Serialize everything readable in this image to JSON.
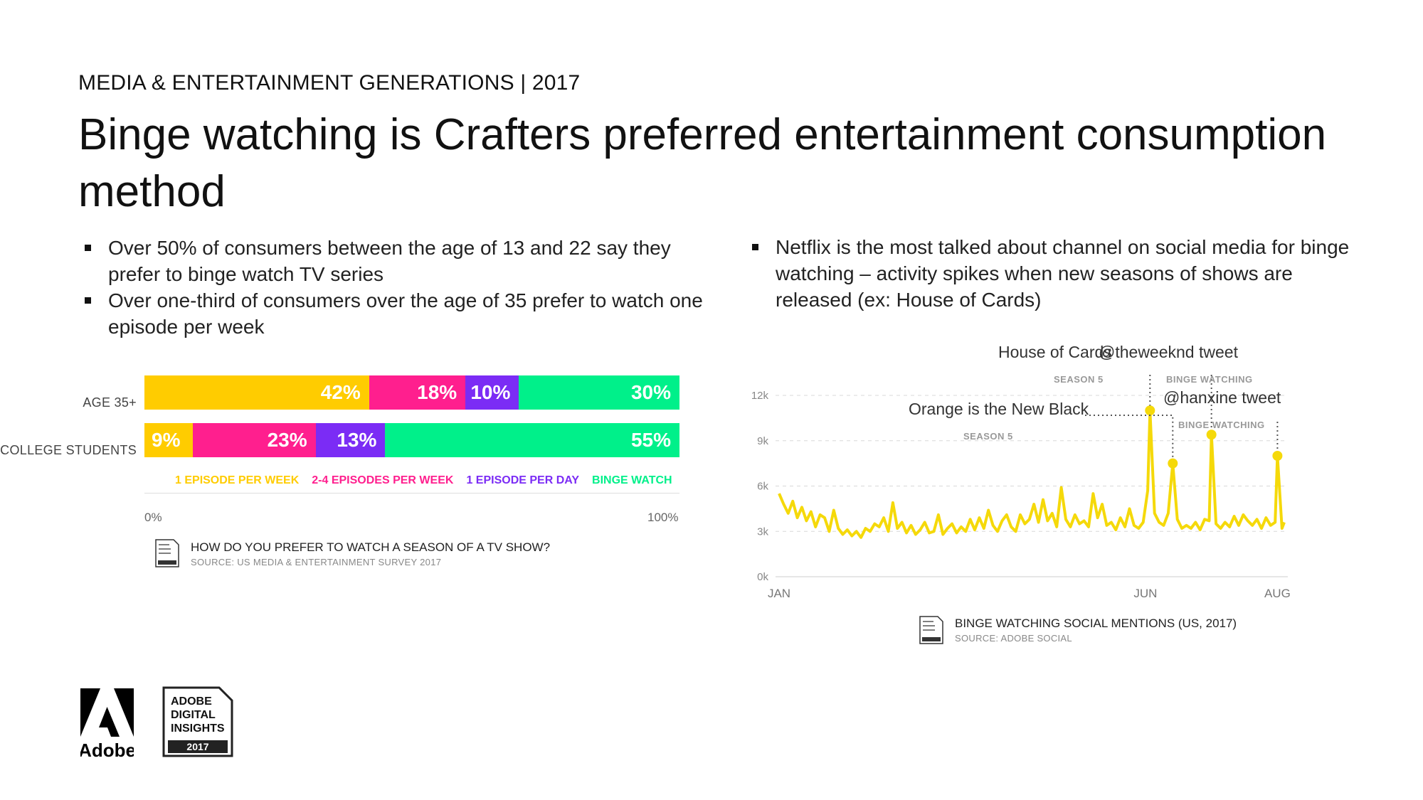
{
  "header": {
    "eyebrow": "MEDIA & ENTERTAINMENT GENERATIONS | 2017",
    "title": "Binge watching is Crafters preferred entertainment consumption method"
  },
  "bullets_left": [
    "Over 50% of consumers between the age of 13 and 22 say they prefer to binge watch TV series",
    "Over one-third of consumers over the age of 35 prefer to watch one episode per week"
  ],
  "bullets_right": [
    "Netflix is the most talked about channel on social media for binge watching – activity spikes when new seasons of shows are released (ex: House of Cards)"
  ],
  "colors": {
    "yellow": "#FFCC00",
    "pink": "#FF1F8E",
    "purple": "#7B2CF5",
    "green": "#00F08A",
    "line": "#F5D90A"
  },
  "chart_data": [
    {
      "type": "bar",
      "orientation": "horizontal-stacked-100",
      "categories": [
        "AGE 35+",
        "COLLEGE STUDENTS"
      ],
      "series": [
        {
          "name": "1 EPISODE PER WEEK",
          "values": [
            42,
            9
          ],
          "labels": [
            "42%",
            "9%"
          ]
        },
        {
          "name": "2-4 EPISODES PER WEEK",
          "values": [
            18,
            23
          ],
          "labels": [
            "18%",
            "23%"
          ]
        },
        {
          "name": "1 EPISODE PER DAY",
          "values": [
            10,
            13
          ],
          "labels": [
            "10%",
            "13%"
          ]
        },
        {
          "name": "BINGE WATCH",
          "values": [
            30,
            55
          ],
          "labels": [
            "30%",
            "55%"
          ]
        }
      ],
      "xlim": [
        0,
        100
      ],
      "x_tick_labels": [
        "0%",
        "100%"
      ],
      "title": "HOW DO YOU PREFER TO WATCH A SEASON OF A TV SHOW?",
      "source": "SOURCE: US MEDIA & ENTERTAINMENT SURVEY 2017"
    },
    {
      "type": "line",
      "title": "BINGE WATCHING SOCIAL MENTIONS (US, 2017)",
      "source": "SOURCE: ADOBE SOCIAL",
      "x_range_days": [
        0,
        222
      ],
      "x_ticks": [
        {
          "day": 0,
          "label": "JAN"
        },
        {
          "day": 161,
          "label": "JUN"
        },
        {
          "day": 219,
          "label": "AUG"
        }
      ],
      "ylim": [
        0,
        12000
      ],
      "y_ticks": [
        {
          "value": 0,
          "label": "0k"
        },
        {
          "value": 3000,
          "label": "3k"
        },
        {
          "value": 6000,
          "label": "6k"
        },
        {
          "value": 9000,
          "label": "9k"
        },
        {
          "value": 12000,
          "label": "12k"
        }
      ],
      "series": [
        {
          "name": "Social mentions",
          "points": [
            [
              0,
              5500
            ],
            [
              2,
              4800
            ],
            [
              4,
              4200
            ],
            [
              6,
              5000
            ],
            [
              8,
              3900
            ],
            [
              10,
              4600
            ],
            [
              12,
              3700
            ],
            [
              14,
              4300
            ],
            [
              16,
              3300
            ],
            [
              18,
              4100
            ],
            [
              20,
              3900
            ],
            [
              22,
              3000
            ],
            [
              24,
              4400
            ],
            [
              26,
              3200
            ],
            [
              28,
              2800
            ],
            [
              30,
              3100
            ],
            [
              32,
              2700
            ],
            [
              34,
              3000
            ],
            [
              36,
              2600
            ],
            [
              38,
              3200
            ],
            [
              40,
              3000
            ],
            [
              42,
              3500
            ],
            [
              44,
              3300
            ],
            [
              46,
              3900
            ],
            [
              48,
              3000
            ],
            [
              50,
              4900
            ],
            [
              52,
              3200
            ],
            [
              54,
              3600
            ],
            [
              56,
              2900
            ],
            [
              58,
              3400
            ],
            [
              60,
              2800
            ],
            [
              62,
              3100
            ],
            [
              64,
              3600
            ],
            [
              66,
              2900
            ],
            [
              68,
              3000
            ],
            [
              70,
              4100
            ],
            [
              72,
              2800
            ],
            [
              74,
              3200
            ],
            [
              76,
              3500
            ],
            [
              78,
              2900
            ],
            [
              80,
              3300
            ],
            [
              82,
              3000
            ],
            [
              84,
              3800
            ],
            [
              86,
              3100
            ],
            [
              88,
              3900
            ],
            [
              90,
              3200
            ],
            [
              92,
              4400
            ],
            [
              94,
              3400
            ],
            [
              96,
              3000
            ],
            [
              98,
              3700
            ],
            [
              100,
              4100
            ],
            [
              102,
              3300
            ],
            [
              104,
              3000
            ],
            [
              106,
              4100
            ],
            [
              108,
              3500
            ],
            [
              110,
              3800
            ],
            [
              112,
              4800
            ],
            [
              114,
              3600
            ],
            [
              116,
              5100
            ],
            [
              118,
              3700
            ],
            [
              120,
              4200
            ],
            [
              122,
              3300
            ],
            [
              124,
              5900
            ],
            [
              126,
              3800
            ],
            [
              128,
              3300
            ],
            [
              130,
              4100
            ],
            [
              132,
              3500
            ],
            [
              134,
              3700
            ],
            [
              136,
              3300
            ],
            [
              138,
              5500
            ],
            [
              140,
              3900
            ],
            [
              142,
              4800
            ],
            [
              144,
              3400
            ],
            [
              146,
              3600
            ],
            [
              148,
              3100
            ],
            [
              150,
              3900
            ],
            [
              152,
              3300
            ],
            [
              154,
              4500
            ],
            [
              156,
              3400
            ],
            [
              158,
              3200
            ],
            [
              160,
              3600
            ],
            [
              162,
              5700
            ],
            [
              163,
              11000
            ],
            [
              165,
              4200
            ],
            [
              167,
              3600
            ],
            [
              169,
              3400
            ],
            [
              171,
              4200
            ],
            [
              173,
              7500
            ],
            [
              175,
              3800
            ],
            [
              177,
              3200
            ],
            [
              179,
              3400
            ],
            [
              181,
              3200
            ],
            [
              183,
              3600
            ],
            [
              185,
              3100
            ],
            [
              187,
              3800
            ],
            [
              189,
              3700
            ],
            [
              190,
              9400
            ],
            [
              192,
              3500
            ],
            [
              194,
              3200
            ],
            [
              196,
              3600
            ],
            [
              198,
              3300
            ],
            [
              200,
              4000
            ],
            [
              202,
              3400
            ],
            [
              204,
              4100
            ],
            [
              206,
              3700
            ],
            [
              208,
              3400
            ],
            [
              210,
              3800
            ],
            [
              212,
              3200
            ],
            [
              214,
              3900
            ],
            [
              216,
              3400
            ],
            [
              218,
              3600
            ],
            [
              219,
              8000
            ],
            [
              221,
              3200
            ],
            [
              222,
              3600
            ]
          ]
        }
      ],
      "annotations": [
        {
          "label": "House of Cards",
          "sub": "SEASON 5",
          "day": 163,
          "value": 11000
        },
        {
          "label": "Orange is the New Black",
          "sub": "SEASON 5",
          "day": 173,
          "value": 7500
        },
        {
          "label": "@theweeknd tweet",
          "sub": "BINGE WATCHING",
          "day": 190,
          "value": 9400
        },
        {
          "label": "@hanxine tweet",
          "sub": "BINGE WATCHING",
          "day": 219,
          "value": 8000
        }
      ]
    }
  ],
  "badge": {
    "lines": [
      "ADOBE",
      "DIGITAL",
      "INSIGHTS"
    ],
    "year": "2017"
  },
  "logo": {
    "wordmark": "Adobe"
  }
}
